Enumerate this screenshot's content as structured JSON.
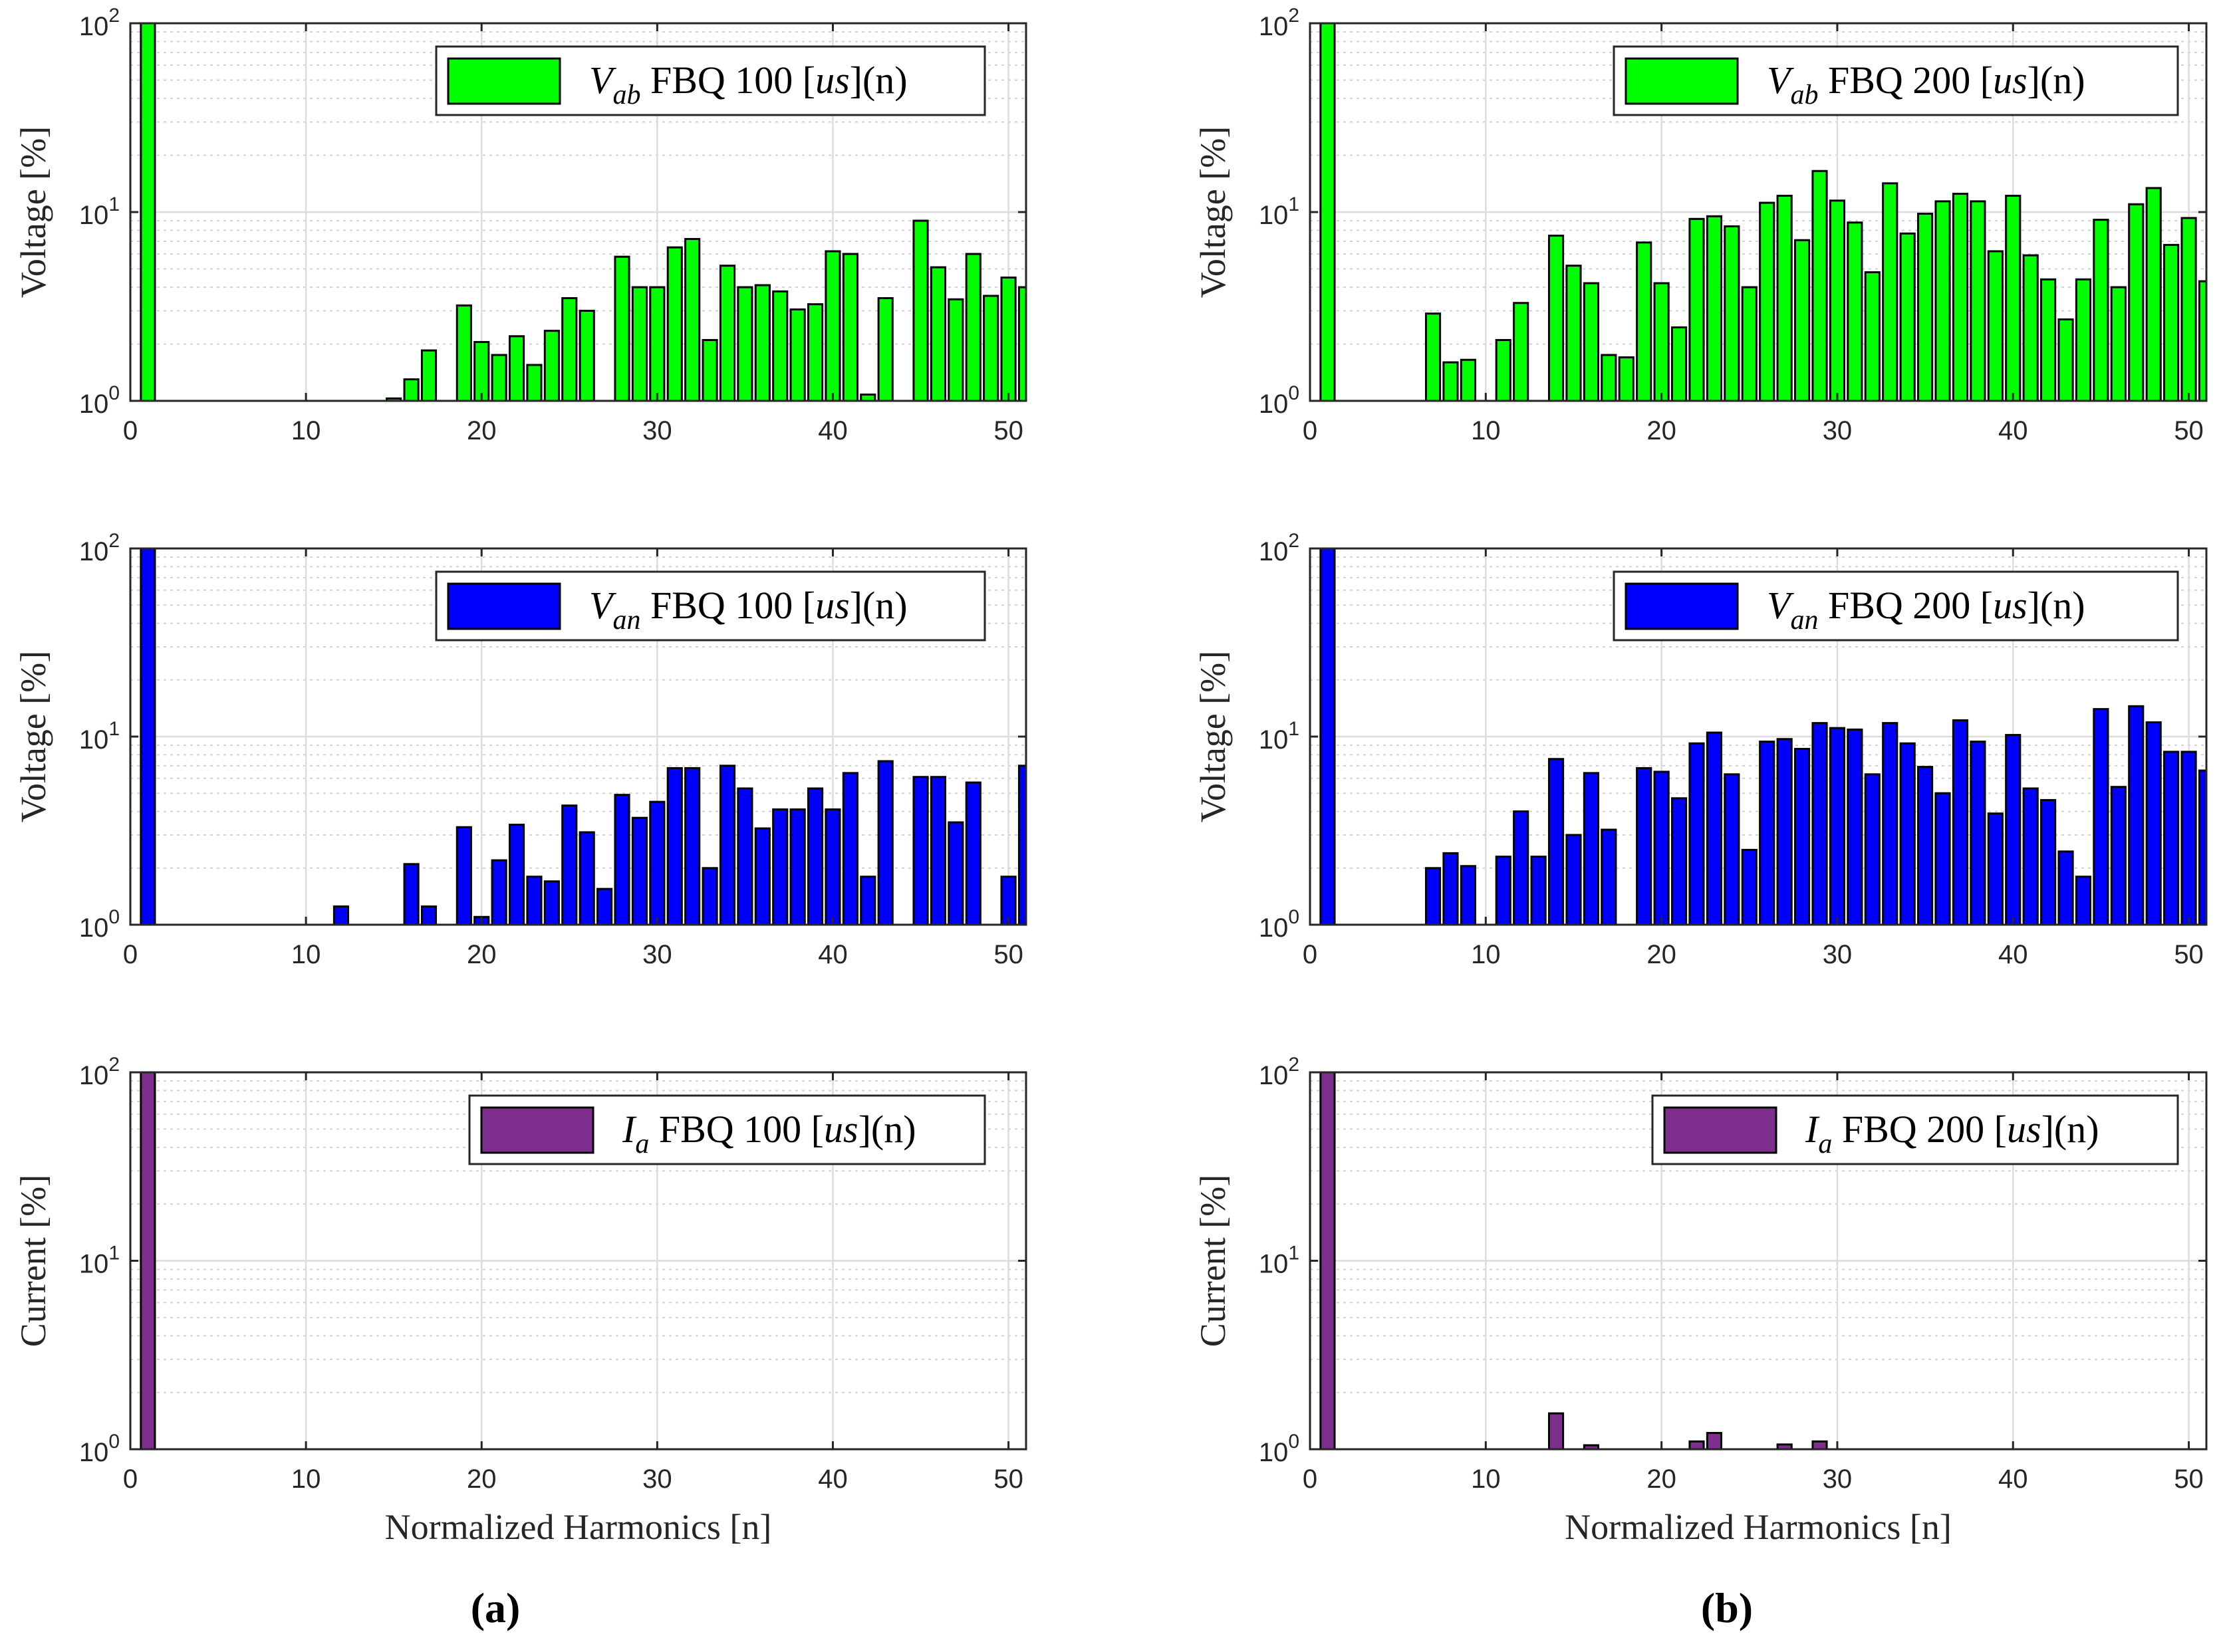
{
  "figure": {
    "panels": [
      {
        "column_label": "(a)",
        "subplots": [
          {
            "ylabel": "Voltage [%]",
            "xlabel": "",
            "legend": {
              "label": "V_ab FBQ 100 [us](n)",
              "sym": "V",
              "sub": "ab",
              "text": " FBQ 100 [",
              "unit": "us",
              "tail": "](n)"
            }
          },
          {
            "ylabel": "Voltage [%]",
            "xlabel": "",
            "legend": {
              "label": "V_an FBQ 100 [us](n)",
              "sym": "V",
              "sub": "an",
              "text": " FBQ 100 [",
              "unit": "us",
              "tail": "](n)"
            }
          },
          {
            "ylabel": "Current [%]",
            "xlabel": "Normalized Harmonics [n]",
            "legend": {
              "label": "I_a FBQ 100 [us](n)",
              "sym": "I",
              "sub": "a",
              "text": " FBQ 100 [",
              "unit": "us",
              "tail": "](n)"
            }
          }
        ]
      },
      {
        "column_label": "(b)",
        "subplots": [
          {
            "ylabel": "Voltage [%]",
            "xlabel": "",
            "legend": {
              "label": "V_ab FBQ 200 [us](n)",
              "sym": "V",
              "sub": "ab",
              "text": " FBQ 200 [",
              "unit": "us",
              "tail": "](n)"
            }
          },
          {
            "ylabel": "Voltage [%]",
            "xlabel": "",
            "legend": {
              "label": "V_an FBQ 200 [us](n)",
              "sym": "V",
              "sub": "an",
              "text": " FBQ 200 [",
              "unit": "us",
              "tail": "](n)"
            }
          },
          {
            "ylabel": "Current [%]",
            "xlabel": "Normalized Harmonics [n]",
            "legend": {
              "label": "I_a FBQ 200 [us](n)",
              "sym": "I",
              "sub": "a",
              "text": " FBQ 200 [",
              "unit": "us",
              "tail": "](n)"
            }
          }
        ]
      }
    ],
    "xticks": [
      0,
      10,
      20,
      30,
      40,
      50
    ],
    "yticks": [
      {
        "base": "10",
        "exp": "0"
      },
      {
        "base": "10",
        "exp": "1"
      },
      {
        "base": "10",
        "exp": "2"
      }
    ]
  },
  "colors": {
    "green": "#00ff00",
    "blue": "#0000ff",
    "purple": "#7e2f8e",
    "grid": "#d9d9d9"
  },
  "chart_data": [
    {
      "type": "bar",
      "title": "V_ab FBQ 100 [us](n)",
      "xlabel": "",
      "ylabel": "Voltage [%]",
      "yscale": "log",
      "xlim": [
        0,
        51
      ],
      "ylim": [
        1,
        100
      ],
      "color": "green",
      "x": [
        1,
        15,
        16,
        17,
        19,
        20,
        21,
        22,
        23,
        24,
        25,
        26,
        28,
        29,
        30,
        31,
        32,
        33,
        34,
        35,
        36,
        37,
        38,
        39,
        40,
        41,
        42,
        43,
        45,
        46,
        47,
        48,
        49,
        50,
        51
      ],
      "values": [
        100,
        1.03,
        1.3,
        1.85,
        3.2,
        2.05,
        1.75,
        2.2,
        1.55,
        2.35,
        3.5,
        3.0,
        5.8,
        4.0,
        4.0,
        6.5,
        7.2,
        2.1,
        5.2,
        4.0,
        4.1,
        3.8,
        3.05,
        3.25,
        6.2,
        6.0,
        1.08,
        3.5,
        9.0,
        5.1,
        3.45,
        6.0,
        3.6,
        4.5,
        4.0
      ]
    },
    {
      "type": "bar",
      "title": "V_an FBQ 100 [us](n)",
      "xlabel": "",
      "ylabel": "Voltage [%]",
      "yscale": "log",
      "xlim": [
        0,
        51
      ],
      "ylim": [
        1,
        100
      ],
      "color": "blue",
      "x": [
        1,
        12,
        16,
        17,
        19,
        20,
        21,
        22,
        23,
        24,
        25,
        26,
        27,
        28,
        29,
        30,
        31,
        32,
        33,
        34,
        35,
        36,
        37,
        38,
        39,
        40,
        41,
        42,
        43,
        45,
        46,
        47,
        48,
        50,
        51
      ],
      "values": [
        100,
        1.25,
        2.1,
        1.25,
        3.3,
        1.1,
        2.2,
        3.4,
        1.8,
        1.7,
        4.3,
        3.1,
        1.55,
        4.9,
        3.7,
        4.5,
        6.8,
        6.8,
        2.0,
        7.0,
        5.3,
        3.25,
        4.1,
        4.1,
        5.3,
        4.1,
        6.4,
        1.8,
        7.4,
        6.1,
        6.1,
        3.5,
        5.7,
        1.8,
        7.0
      ]
    },
    {
      "type": "bar",
      "title": "I_a FBQ 100 [us](n)",
      "xlabel": "Normalized Harmonics [n]",
      "ylabel": "Current [%]",
      "yscale": "log",
      "xlim": [
        0,
        51
      ],
      "ylim": [
        1,
        100
      ],
      "color": "purple",
      "x": [
        1
      ],
      "values": [
        100
      ]
    },
    {
      "type": "bar",
      "title": "V_ab FBQ 200 [us](n)",
      "xlabel": "",
      "ylabel": "Voltage [%]",
      "yscale": "log",
      "xlim": [
        0,
        51
      ],
      "ylim": [
        1,
        100
      ],
      "color": "green",
      "x": [
        1,
        7,
        8,
        9,
        11,
        12,
        14,
        15,
        16,
        17,
        18,
        19,
        20,
        21,
        22,
        23,
        24,
        25,
        26,
        27,
        28,
        29,
        30,
        31,
        32,
        33,
        34,
        35,
        36,
        37,
        38,
        39,
        40,
        41,
        42,
        43,
        44,
        45,
        46,
        47,
        48,
        49,
        50,
        51
      ],
      "values": [
        100,
        2.9,
        1.6,
        1.65,
        2.1,
        3.3,
        7.5,
        5.2,
        4.2,
        1.75,
        1.7,
        6.9,
        4.2,
        2.45,
        9.2,
        9.5,
        8.4,
        4.0,
        11.2,
        12.2,
        7.1,
        16.5,
        11.5,
        8.8,
        4.8,
        14.2,
        7.7,
        9.8,
        11.4,
        12.5,
        11.4,
        6.2,
        12.2,
        5.9,
        4.4,
        2.7,
        4.4,
        9.1,
        4.0,
        11.0,
        13.4,
        6.7,
        9.3,
        4.3
      ]
    },
    {
      "type": "bar",
      "title": "V_an FBQ 200 [us](n)",
      "xlabel": "",
      "ylabel": "Voltage [%]",
      "yscale": "log",
      "xlim": [
        0,
        51
      ],
      "ylim": [
        1,
        100
      ],
      "color": "blue",
      "x": [
        1,
        7,
        8,
        9,
        11,
        12,
        13,
        14,
        15,
        16,
        17,
        19,
        20,
        21,
        22,
        23,
        24,
        25,
        26,
        27,
        28,
        29,
        30,
        31,
        32,
        33,
        34,
        35,
        36,
        37,
        38,
        39,
        40,
        41,
        42,
        43,
        44,
        45,
        46,
        47,
        48,
        49,
        50,
        51
      ],
      "values": [
        100,
        2.0,
        2.4,
        2.05,
        2.3,
        4.0,
        2.3,
        7.6,
        3.0,
        6.4,
        3.2,
        6.8,
        6.5,
        4.7,
        9.2,
        10.5,
        6.3,
        2.5,
        9.4,
        9.7,
        8.6,
        11.8,
        11.1,
        10.9,
        6.3,
        11.8,
        9.2,
        6.9,
        5.0,
        12.2,
        9.4,
        3.9,
        10.2,
        5.3,
        4.6,
        2.45,
        1.8,
        14.0,
        5.4,
        14.5,
        11.9,
        8.3,
        8.3,
        6.6
      ]
    },
    {
      "type": "bar",
      "title": "I_a FBQ 200 [us](n)",
      "xlabel": "Normalized Harmonics [n]",
      "ylabel": "Current [%]",
      "yscale": "log",
      "xlim": [
        0,
        51
      ],
      "ylim": [
        1,
        100
      ],
      "color": "purple",
      "x": [
        1,
        14,
        16,
        22,
        23,
        27,
        29
      ],
      "values": [
        100,
        1.55,
        1.05,
        1.1,
        1.22,
        1.06,
        1.1
      ]
    }
  ]
}
